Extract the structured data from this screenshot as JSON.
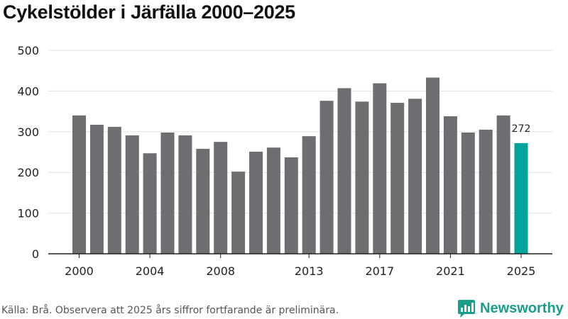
{
  "title": "Cykelstölder i Järfälla 2000–2025",
  "source": "Källa: Brå. Observera att 2025 års siffror fortfarande är preliminära.",
  "brand": {
    "name": "Newsworthy",
    "icon": "newsworthy-logo-icon"
  },
  "colors": {
    "bar": "#6e6d72",
    "highlight": "#00a39a",
    "grid": "#e2e2e2",
    "axis": "#222222",
    "text": "#222222"
  },
  "chart_data": {
    "type": "bar",
    "title": "Cykelstölder i Järfälla 2000–2025",
    "xlabel": "",
    "ylabel": "",
    "categories": [
      "2000",
      "2001",
      "2002",
      "2003",
      "2004",
      "2005",
      "2006",
      "2007",
      "2008",
      "2009",
      "2010",
      "2011",
      "2012",
      "2013",
      "2014",
      "2015",
      "2016",
      "2017",
      "2018",
      "2019",
      "2020",
      "2021",
      "2022",
      "2023",
      "2024",
      "2025"
    ],
    "values": [
      340,
      317,
      312,
      291,
      247,
      298,
      291,
      258,
      275,
      202,
      251,
      261,
      237,
      289,
      376,
      407,
      374,
      419,
      371,
      381,
      433,
      338,
      298,
      305,
      340,
      272
    ],
    "highlight_index": 25,
    "highlight_label": "272",
    "ylim": [
      0,
      500
    ],
    "yticks": [
      0,
      100,
      200,
      300,
      400,
      500
    ],
    "xtick_labels": [
      "2000",
      "2004",
      "2008",
      "2013",
      "2017",
      "2021",
      "2025"
    ],
    "grid": true
  }
}
